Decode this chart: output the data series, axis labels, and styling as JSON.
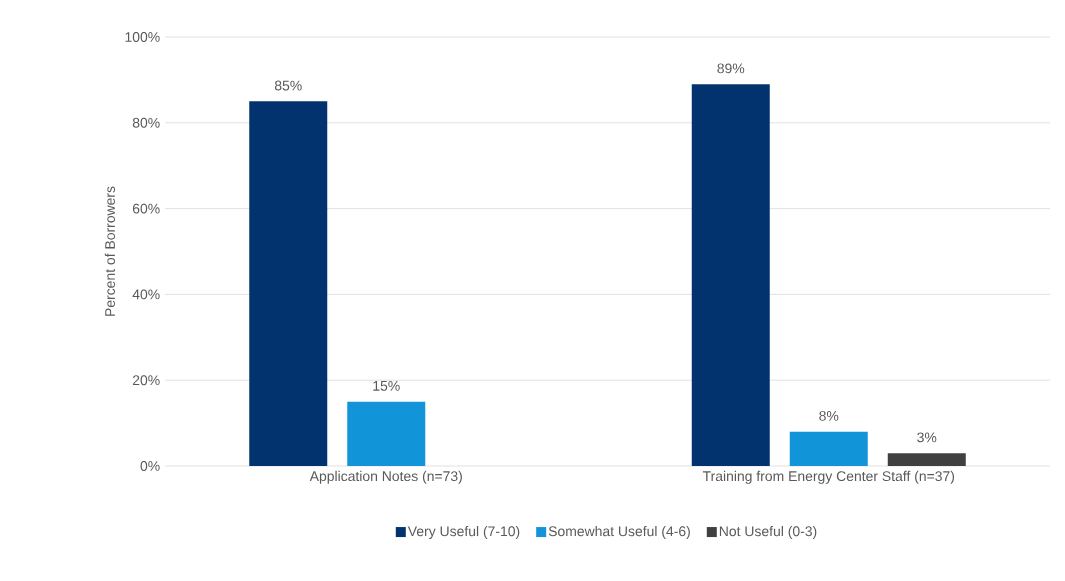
{
  "chart_data": {
    "type": "bar",
    "ylabel": "Percent of Borrowers",
    "categories": [
      "Application Notes (n=73)",
      "Training from Energy Center Staff (n=37)"
    ],
    "series": [
      {
        "name": "Very Useful (7-10)",
        "color": "#03336e",
        "values": [
          85,
          89
        ],
        "value_labels": [
          "85%",
          "89%"
        ]
      },
      {
        "name": "Somewhat Useful (4-6)",
        "color": "#1295d8",
        "values": [
          15,
          8
        ],
        "value_labels": [
          "15%",
          "8%"
        ]
      },
      {
        "name": "Not Useful (0-3)",
        "color": "#404040",
        "values": [
          null,
          3
        ],
        "value_labels": [
          null,
          "3%"
        ]
      }
    ],
    "ylim": [
      0,
      100
    ],
    "yticks": [
      {
        "value": 0,
        "label": "0%"
      },
      {
        "value": 20,
        "label": "20%"
      },
      {
        "value": 40,
        "label": "40%"
      },
      {
        "value": 60,
        "label": "60%"
      },
      {
        "value": 80,
        "label": "80%"
      },
      {
        "value": 100,
        "label": "100%"
      }
    ],
    "grid": "y",
    "legend": "bottom"
  }
}
